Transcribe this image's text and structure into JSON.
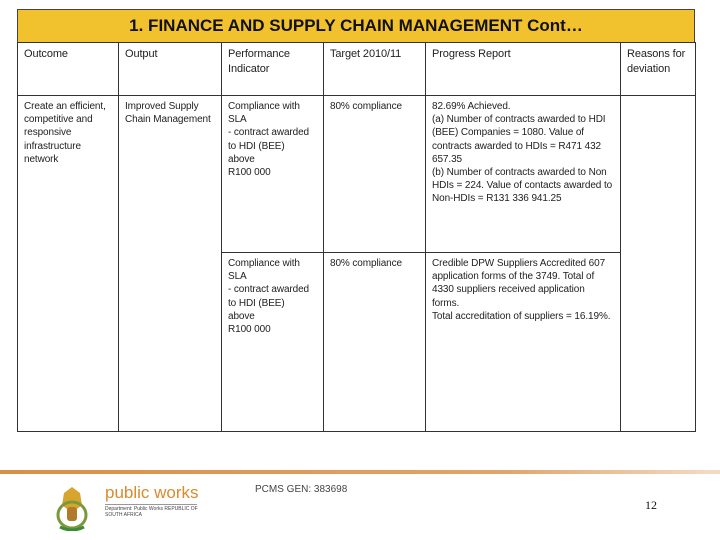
{
  "title": "1. FINANCE AND SUPPLY CHAIN MANAGEMENT Cont…",
  "headers": [
    "Outcome",
    "Output",
    "Performance Indicator",
    "Target 2010/11",
    "Progress Report",
    "Reasons for deviation"
  ],
  "outcome": "Create an efficient, competitive and responsive infrastructure network",
  "output": "Improved Supply Chain Management",
  "rows": [
    {
      "indicator": "Compliance with SLA\n- contract awarded\nto HDI (BEE)\nabove\nR100 000",
      "target": "80% compliance",
      "progress": "82.69% Achieved.\n(a) Number of contracts awarded to HDI (BEE) Companies = 1080. Value of contracts awarded to HDIs = R471 432 657.35\n(b) Number of contracts awarded to Non HDIs = 224. Value of contacts awarded to Non-HDIs = R131 336 941.25"
    },
    {
      "indicator": "Compliance with SLA\n- contract awarded\nto HDI (BEE)\nabove\nR100 000",
      "target": "80% compliance",
      "progress": "Credible DPW Suppliers Accredited 607 application forms of the 3749. Total of 4330 suppliers received application forms.\nTotal accreditation of suppliers = 16.19%."
    }
  ],
  "reasons": "",
  "footer": {
    "logo_text": "public works",
    "logo_sub": "Department: Public Works REPUBLIC OF SOUTH AFRICA",
    "pcms": "PCMS GEN: 383698",
    "page_number": "12"
  },
  "colors": {
    "title_bg": "#f2c12e",
    "rule": "#d98f45",
    "logo": "#d98a2c"
  }
}
